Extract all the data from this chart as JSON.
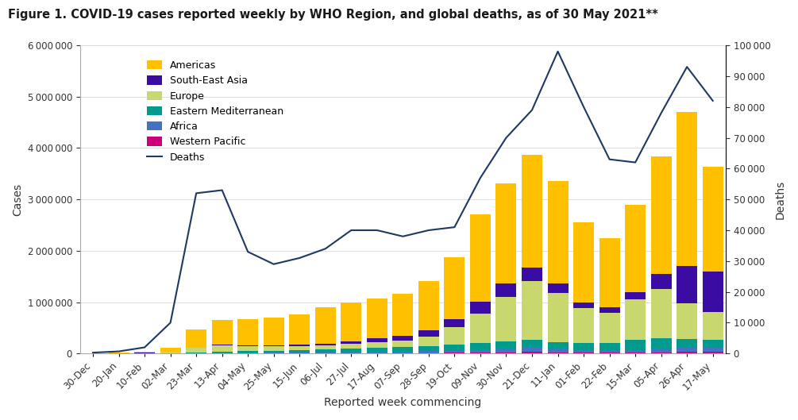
{
  "title": "Figure 1. COVID-19 cases reported weekly by WHO Region, and global deaths, as of 30 May 2021**",
  "xlabel": "Reported week commencing",
  "ylabel_left": "Cases",
  "ylabel_right": "Deaths",
  "background_color": "#ffffff",
  "title_color": "#1a1a1a",
  "categories": [
    "30-Dec",
    "20-Jan",
    "10-Feb",
    "02-Mar",
    "23-Mar",
    "13-Apr",
    "04-May",
    "25-May",
    "15-Jun",
    "06-Jul",
    "27-Jul",
    "17-Aug",
    "07-Sep",
    "28-Sep",
    "19-Oct",
    "09-Nov",
    "30-Nov",
    "21-Dec",
    "11-Jan",
    "01-Feb",
    "22-Feb",
    "15-Mar",
    "05-Apr",
    "26-Apr",
    "17-May"
  ],
  "americas": [
    8000,
    15000,
    25000,
    80000,
    350000,
    480000,
    500000,
    530000,
    580000,
    700000,
    750000,
    780000,
    820000,
    950000,
    1200000,
    1700000,
    1950000,
    2200000,
    2000000,
    1550000,
    1350000,
    1700000,
    2300000,
    3000000,
    2050000
  ],
  "south_east_asia": [
    500,
    1000,
    2000,
    4000,
    8000,
    12000,
    18000,
    22000,
    28000,
    35000,
    55000,
    75000,
    95000,
    125000,
    165000,
    230000,
    260000,
    250000,
    180000,
    120000,
    110000,
    140000,
    280000,
    720000,
    780000
  ],
  "europe": [
    1500,
    4000,
    8000,
    25000,
    80000,
    120000,
    100000,
    90000,
    85000,
    80000,
    90000,
    110000,
    130000,
    190000,
    340000,
    580000,
    870000,
    1150000,
    950000,
    680000,
    580000,
    780000,
    970000,
    690000,
    540000
  ],
  "eastern_med": [
    300,
    800,
    1500,
    4000,
    18000,
    28000,
    32000,
    38000,
    48000,
    58000,
    65000,
    75000,
    85000,
    95000,
    115000,
    125000,
    135000,
    145000,
    130000,
    125000,
    145000,
    195000,
    195000,
    175000,
    155000
  ],
  "africa": [
    100,
    300,
    600,
    1500,
    3500,
    6000,
    8000,
    10000,
    13000,
    18000,
    22000,
    28000,
    32000,
    37000,
    42000,
    55000,
    75000,
    95000,
    75000,
    55000,
    48000,
    55000,
    75000,
    85000,
    85000
  ],
  "western_pacific": [
    200,
    400,
    800,
    1800,
    4000,
    4500,
    3500,
    3500,
    4500,
    5500,
    6500,
    7500,
    9000,
    11000,
    14000,
    18000,
    23000,
    28000,
    23000,
    18000,
    16000,
    18000,
    23000,
    28000,
    32000
  ],
  "deaths": [
    300,
    700,
    2000,
    10000,
    52000,
    53000,
    33000,
    29000,
    31000,
    34000,
    40000,
    40000,
    38000,
    40000,
    41000,
    57000,
    70000,
    79000,
    98000,
    80000,
    63000,
    62000,
    78000,
    93000,
    82000
  ],
  "colors": {
    "americas": "#FFC000",
    "south_east_asia": "#3A0CA3",
    "europe": "#C8D86E",
    "eastern_med": "#009B8D",
    "africa": "#4472C4",
    "western_pacific": "#CC007A"
  },
  "deaths_color": "#1F3864",
  "ylim_left": [
    0,
    6000000
  ],
  "ylim_right": [
    0,
    100000
  ],
  "yticks_left": [
    0,
    1000000,
    2000000,
    3000000,
    4000000,
    5000000,
    6000000
  ],
  "yticks_right": [
    0,
    10000,
    20000,
    30000,
    40000,
    50000,
    60000,
    70000,
    80000,
    90000,
    100000
  ],
  "title_fontsize": 10.5,
  "axis_label_fontsize": 10,
  "tick_fontsize": 8.5,
  "legend_fontsize": 9
}
